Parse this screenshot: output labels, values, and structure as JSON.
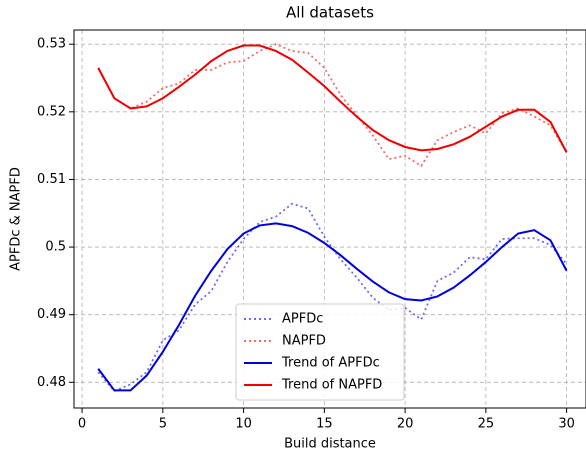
{
  "chart_data": {
    "type": "line",
    "title": "All datasets",
    "x_label": "Build distance",
    "y_label": "APFDc & NAPFD",
    "x": [
      1,
      2,
      3,
      4,
      5,
      6,
      7,
      8,
      9,
      10,
      11,
      12,
      13,
      14,
      15,
      16,
      17,
      18,
      19,
      20,
      21,
      22,
      23,
      24,
      25,
      26,
      27,
      28,
      29,
      30
    ],
    "series": [
      {
        "name": "APFDc",
        "color": "#6a6af2",
        "linestyle": "dotted",
        "values": [
          0.4815,
          0.4787,
          0.4797,
          0.4815,
          0.4862,
          0.4877,
          0.4915,
          0.4935,
          0.4978,
          0.5012,
          0.5037,
          0.5045,
          0.5064,
          0.5057,
          0.5015,
          0.4982,
          0.4955,
          0.4925,
          0.4907,
          0.491,
          0.4893,
          0.495,
          0.4962,
          0.4985,
          0.4982,
          0.5012,
          0.5013,
          0.5013,
          0.5003,
          0.4975
        ]
      },
      {
        "name": "NAPFD",
        "color": "#f26a6a",
        "linestyle": "dotted",
        "values": [
          0.5265,
          0.522,
          0.5205,
          0.5215,
          0.5235,
          0.5242,
          0.5262,
          0.5262,
          0.5273,
          0.5275,
          0.529,
          0.53,
          0.529,
          0.5287,
          0.5265,
          0.5225,
          0.5195,
          0.5165,
          0.513,
          0.5135,
          0.512,
          0.5158,
          0.517,
          0.518,
          0.5168,
          0.5198,
          0.5205,
          0.5193,
          0.518,
          0.514
        ]
      },
      {
        "name": "Trend of APFDc",
        "color": "#0000dd",
        "linestyle": "solid",
        "values": [
          0.482,
          0.4788,
          0.4788,
          0.481,
          0.4845,
          0.4885,
          0.4928,
          0.4965,
          0.4997,
          0.502,
          0.5032,
          0.5035,
          0.5031,
          0.5021,
          0.5006,
          0.4988,
          0.4968,
          0.4949,
          0.4933,
          0.4923,
          0.4921,
          0.4927,
          0.494,
          0.4958,
          0.4978,
          0.5,
          0.502,
          0.5025,
          0.501,
          0.4965
        ]
      },
      {
        "name": "Trend of NAPFD",
        "color": "#ee0000",
        "linestyle": "solid",
        "values": [
          0.5265,
          0.522,
          0.5205,
          0.5208,
          0.522,
          0.5237,
          0.5255,
          0.5275,
          0.529,
          0.5298,
          0.5298,
          0.529,
          0.5277,
          0.5258,
          0.5238,
          0.5215,
          0.5193,
          0.5173,
          0.5158,
          0.5148,
          0.5143,
          0.5145,
          0.5152,
          0.5163,
          0.5178,
          0.5193,
          0.5203,
          0.5203,
          0.5185,
          0.514
        ]
      }
    ],
    "xlim": [
      -0.5,
      31.2
    ],
    "xticks": [
      0,
      5,
      10,
      15,
      20,
      25,
      30
    ],
    "ylim": [
      0.4762,
      0.5321
    ],
    "yticks": [
      0.48,
      0.49,
      0.5,
      0.51,
      0.52,
      0.53
    ],
    "grid": true,
    "legend": "lower center"
  }
}
